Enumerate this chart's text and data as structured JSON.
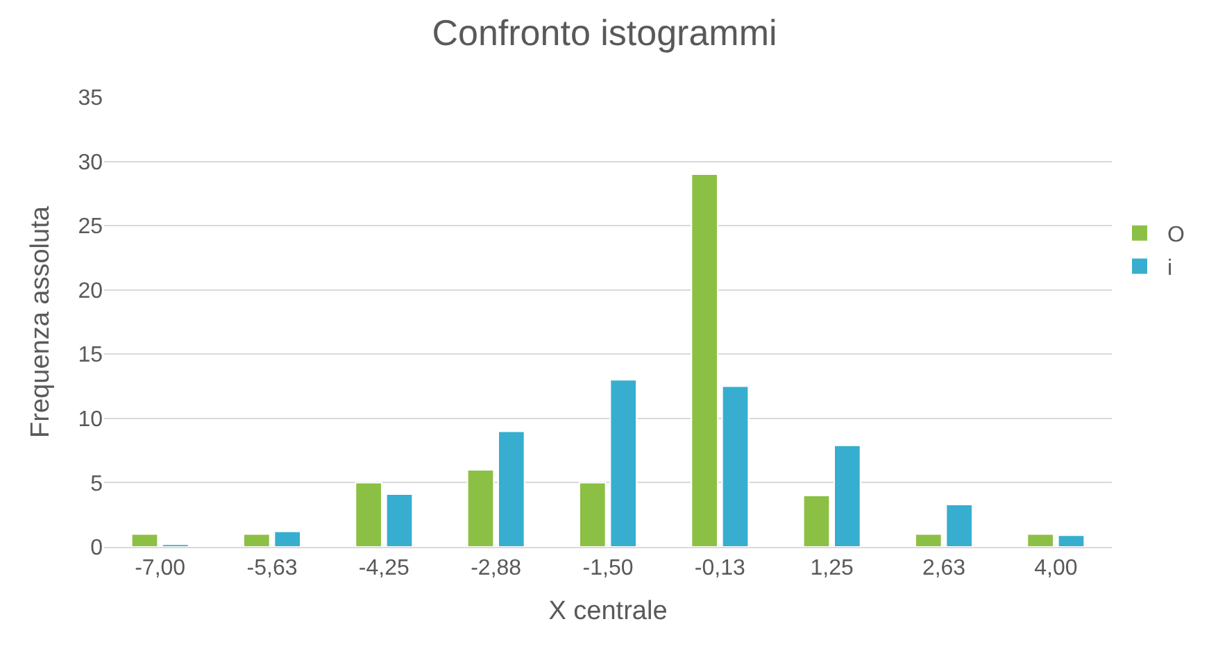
{
  "chart_data": {
    "type": "bar",
    "title": "Confronto istogrammi",
    "xlabel": "X centrale",
    "ylabel": "Frequenza assoluta",
    "categories": [
      "-7,00",
      "-5,63",
      "-4,25",
      "-2,88",
      "-1,50",
      "-0,13",
      "1,25",
      "2,63",
      "4,00"
    ],
    "series": [
      {
        "name": "O",
        "color": "#8bc045",
        "values": [
          1,
          1,
          5,
          6,
          5,
          29,
          4,
          1,
          1
        ]
      },
      {
        "name": "i",
        "color": "#37aecf",
        "values": [
          0.2,
          1.2,
          4.1,
          9.0,
          13.0,
          12.5,
          7.9,
          3.3,
          0.9
        ]
      }
    ],
    "ylim": [
      0,
      35
    ],
    "yticks": [
      0,
      5,
      10,
      15,
      20,
      25,
      30,
      35
    ],
    "grid": "y",
    "legend": "right"
  }
}
